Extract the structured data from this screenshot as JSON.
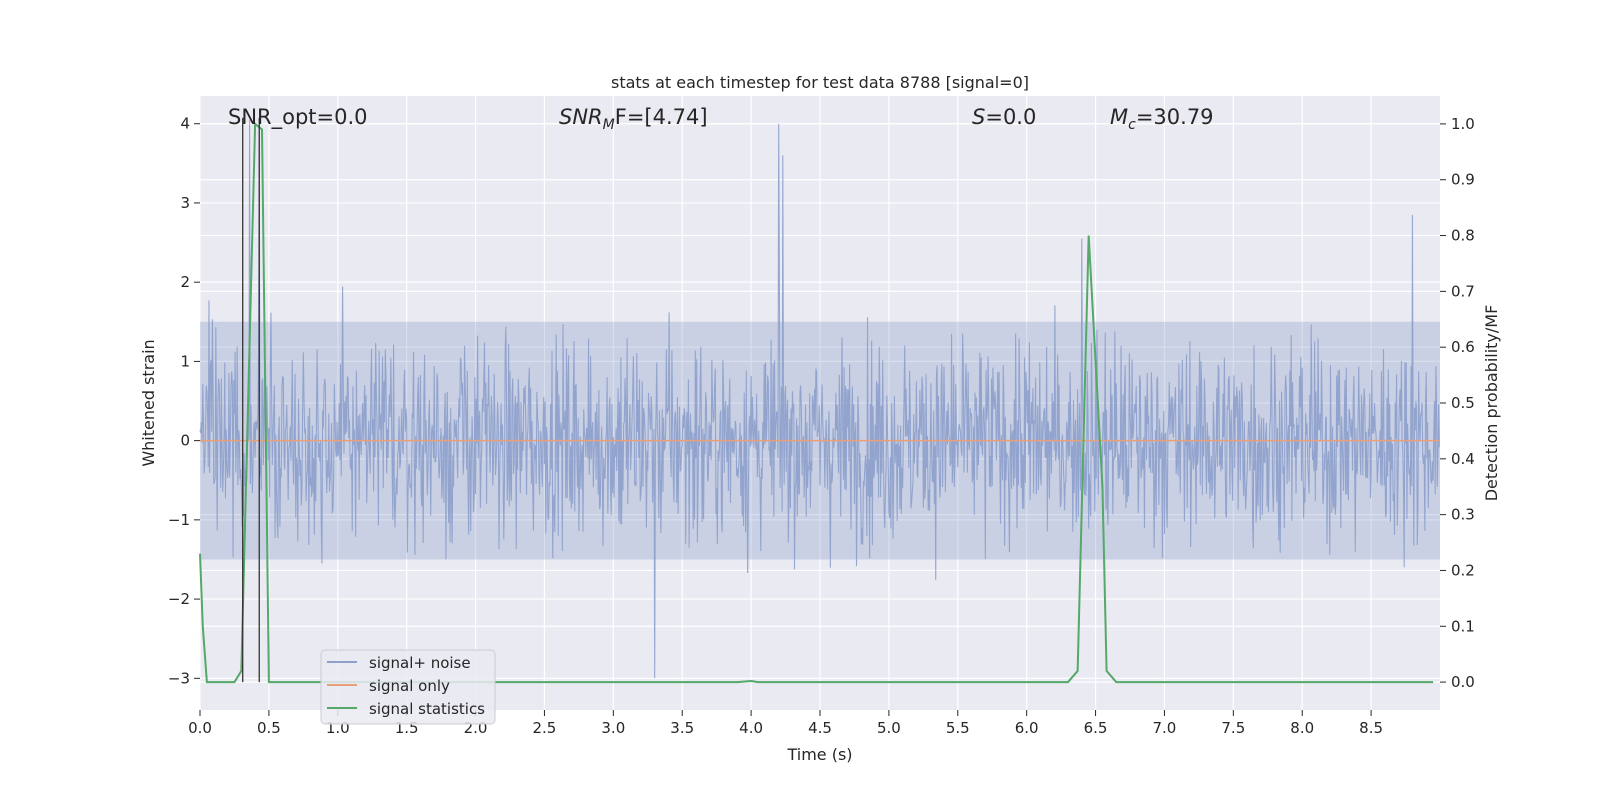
{
  "chart_data": {
    "type": "line",
    "title": "stats at each timestep for test data 8788 [signal=0]",
    "xlabel": "Time (s)",
    "ylabel_left": "Whitened strain",
    "ylabel_right": "Detection probability/MF",
    "xlim": [
      0.0,
      9.0
    ],
    "ylim_left": [
      -3.4,
      4.35
    ],
    "ylim_right": [
      -0.05,
      1.05
    ],
    "x_ticks": [
      "0.0",
      "0.5",
      "1.0",
      "1.5",
      "2.0",
      "2.5",
      "3.0",
      "3.5",
      "4.0",
      "4.5",
      "5.0",
      "5.5",
      "6.0",
      "6.5",
      "7.0",
      "7.5",
      "8.0",
      "8.5"
    ],
    "x_tick_values": [
      0.0,
      0.5,
      1.0,
      1.5,
      2.0,
      2.5,
      3.0,
      3.5,
      4.0,
      4.5,
      5.0,
      5.5,
      6.0,
      6.5,
      7.0,
      7.5,
      8.0,
      8.5
    ],
    "y_left_ticks": [
      "4",
      "3",
      "2",
      "1",
      "0",
      "−1",
      "−2",
      "−3"
    ],
    "y_left_tick_values": [
      4,
      3,
      2,
      1,
      0,
      -1,
      -2,
      -3
    ],
    "y_right_ticks": [
      "1.0",
      "0.9",
      "0.8",
      "0.7",
      "0.6",
      "0.5",
      "0.4",
      "0.3",
      "0.2",
      "0.1",
      "0.0"
    ],
    "y_right_tick_values": [
      1.0,
      0.9,
      0.8,
      0.7,
      0.6,
      0.5,
      0.4,
      0.3,
      0.2,
      0.1,
      0.0
    ],
    "annotations": {
      "snr_opt": "SNR_opt=0.0",
      "snr_mf_main": "SNR",
      "snr_mf_sub": "M",
      "snr_mf_rest": "F=[4.74]",
      "s_main": "S",
      "s_rest": "=0.0",
      "mc_main": "M",
      "mc_sub": "c",
      "mc_rest": "=30.79"
    },
    "legend": [
      "signal+ noise",
      "signal only",
      "signal statistics"
    ],
    "legend_position": "lower-left",
    "colors": {
      "noise": "#8da0cb",
      "signal": "#e8a07a",
      "stats": "#55a868",
      "vline": "#333333",
      "plot_bg": "#eaeaf2",
      "grid": "#ffffff"
    },
    "vertical_markers_x": [
      0.31,
      0.43
    ],
    "noise_profile": {
      "sample_count": 1800,
      "envelope": 1.5,
      "peak_times": [
        0.36,
        0.43,
        4.2,
        4.23,
        3.3,
        6.4,
        8.8
      ],
      "peak_values": [
        4.05,
        4.0,
        4.0,
        3.6,
        -3.0,
        2.55,
        2.85
      ]
    },
    "signal_only": {
      "x": [
        0.0,
        9.0
      ],
      "y": [
        0.0,
        0.0
      ]
    },
    "series": [
      {
        "name": "signal statistics",
        "axis": "right",
        "x": [
          0.0,
          0.02,
          0.05,
          0.25,
          0.3,
          0.4,
          0.45,
          0.5,
          1.0,
          2.0,
          3.0,
          3.9,
          4.0,
          4.05,
          5.0,
          6.0,
          6.3,
          6.37,
          6.45,
          6.55,
          6.58,
          6.65,
          7.0,
          8.0,
          8.95
        ],
        "y": [
          0.23,
          0.1,
          0.0,
          0.0,
          0.02,
          1.0,
          0.99,
          0.0,
          0.0,
          0.0,
          0.0,
          0.0,
          0.002,
          0.0,
          0.0,
          0.0,
          0.0,
          0.02,
          0.8,
          0.35,
          0.02,
          0.0,
          0.0,
          0.0,
          0.0
        ]
      }
    ]
  }
}
